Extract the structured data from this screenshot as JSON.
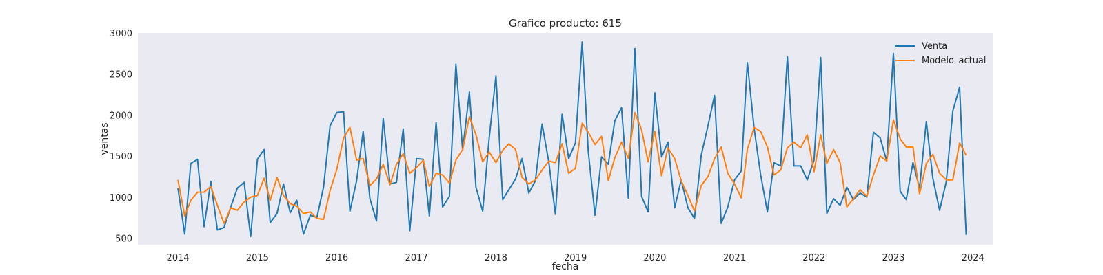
{
  "chart_data": {
    "type": "line",
    "title": "Grafico producto: 615",
    "xlabel": "fecha",
    "ylabel": "ventas",
    "x_axis_type": "date",
    "xlim": [
      "2013-07-01",
      "2024-04-01"
    ],
    "ylim": [
      420,
      3000
    ],
    "x_ticks": [
      "2014",
      "2015",
      "2016",
      "2017",
      "2018",
      "2019",
      "2020",
      "2021",
      "2022",
      "2023",
      "2024"
    ],
    "y_ticks": [
      500,
      1000,
      1500,
      2000,
      2500,
      3000
    ],
    "grid": false,
    "background": "#eaeaf2",
    "legend_position": "top-right",
    "x": [
      "2014-01",
      "2014-02",
      "2014-03",
      "2014-04",
      "2014-05",
      "2014-06",
      "2014-07",
      "2014-08",
      "2014-09",
      "2014-10",
      "2014-11",
      "2014-12",
      "2015-01",
      "2015-02",
      "2015-03",
      "2015-04",
      "2015-05",
      "2015-06",
      "2015-07",
      "2015-08",
      "2015-09",
      "2015-10",
      "2015-11",
      "2015-12",
      "2016-01",
      "2016-02",
      "2016-03",
      "2016-04",
      "2016-05",
      "2016-06",
      "2016-07",
      "2016-08",
      "2016-09",
      "2016-10",
      "2016-11",
      "2016-12",
      "2017-01",
      "2017-02",
      "2017-03",
      "2017-04",
      "2017-05",
      "2017-06",
      "2017-07",
      "2017-08",
      "2017-09",
      "2017-10",
      "2017-11",
      "2017-12",
      "2018-01",
      "2018-02",
      "2018-03",
      "2018-04",
      "2018-05",
      "2018-06",
      "2018-07",
      "2018-08",
      "2018-09",
      "2018-10",
      "2018-11",
      "2018-12",
      "2019-01",
      "2019-02",
      "2019-03",
      "2019-04",
      "2019-05",
      "2019-06",
      "2019-07",
      "2019-08",
      "2019-09",
      "2019-10",
      "2019-11",
      "2019-12",
      "2020-01",
      "2020-02",
      "2020-03",
      "2020-04",
      "2020-05",
      "2020-06",
      "2020-07",
      "2020-08",
      "2020-09",
      "2020-10",
      "2020-11",
      "2020-12",
      "2021-01",
      "2021-02",
      "2021-03",
      "2021-04",
      "2021-05",
      "2021-06",
      "2021-07",
      "2021-08",
      "2021-09",
      "2021-10",
      "2021-11",
      "2021-12",
      "2022-01",
      "2022-02",
      "2022-03",
      "2022-04",
      "2022-05",
      "2022-06",
      "2022-07",
      "2022-08",
      "2022-09",
      "2022-10",
      "2022-11",
      "2022-12",
      "2023-01",
      "2023-02",
      "2023-03",
      "2023-04",
      "2023-05",
      "2023-06",
      "2023-07",
      "2023-08",
      "2023-09",
      "2023-10",
      "2023-11",
      "2023-12"
    ],
    "series": [
      {
        "name": "Venta",
        "color": "#1f77b4",
        "values": [
          1110,
          550,
          1410,
          1460,
          640,
          1190,
          600,
          630,
          880,
          1110,
          1180,
          520,
          1460,
          1580,
          690,
          800,
          1160,
          810,
          960,
          550,
          780,
          750,
          1120,
          1870,
          2030,
          2040,
          830,
          1200,
          1800,
          980,
          710,
          1960,
          1160,
          1180,
          1830,
          590,
          1470,
          1460,
          770,
          1910,
          880,
          1010,
          2620,
          1570,
          2280,
          1120,
          830,
          1720,
          2480,
          970,
          1090,
          1220,
          1470,
          1050,
          1200,
          1890,
          1420,
          790,
          2010,
          1470,
          1660,
          2890,
          1560,
          780,
          1490,
          1400,
          1930,
          2090,
          990,
          2810,
          1010,
          820,
          2270,
          1490,
          1670,
          870,
          1210,
          870,
          740,
          1510,
          1870,
          2240,
          680,
          880,
          1210,
          1320,
          2640,
          1840,
          1270,
          820,
          1420,
          1380,
          2710,
          1380,
          1380,
          1210,
          1450,
          2700,
          800,
          980,
          900,
          1120,
          970,
          1050,
          1000,
          1790,
          1720,
          1440,
          2750,
          1070,
          970,
          1420,
          1110,
          1920,
          1230,
          840,
          1190,
          2050,
          2340,
          540
        ]
      },
      {
        "name": "Modelo_actual",
        "color": "#ff7f0e",
        "values": [
          1210,
          770,
          960,
          1060,
          1060,
          1130,
          900,
          680,
          870,
          840,
          940,
          1000,
          1020,
          1230,
          960,
          1240,
          1020,
          920,
          890,
          800,
          820,
          740,
          730,
          1080,
          1340,
          1720,
          1850,
          1450,
          1470,
          1140,
          1220,
          1400,
          1150,
          1400,
          1530,
          1290,
          1360,
          1450,
          1130,
          1290,
          1270,
          1170,
          1450,
          1580,
          1980,
          1760,
          1430,
          1550,
          1420,
          1570,
          1650,
          1580,
          1240,
          1160,
          1210,
          1330,
          1440,
          1420,
          1650,
          1290,
          1350,
          1900,
          1790,
          1640,
          1740,
          1200,
          1480,
          1670,
          1470,
          2030,
          1820,
          1430,
          1800,
          1260,
          1600,
          1470,
          1200,
          1020,
          830,
          1140,
          1250,
          1470,
          1610,
          1290,
          1160,
          990,
          1580,
          1850,
          1800,
          1610,
          1270,
          1330,
          1600,
          1670,
          1600,
          1760,
          1310,
          1760,
          1410,
          1580,
          1420,
          880,
          980,
          1090,
          1010,
          1270,
          1500,
          1440,
          1940,
          1710,
          1610,
          1610,
          1040,
          1410,
          1520,
          1290,
          1210,
          1210,
          1660,
          1510
        ]
      }
    ]
  }
}
